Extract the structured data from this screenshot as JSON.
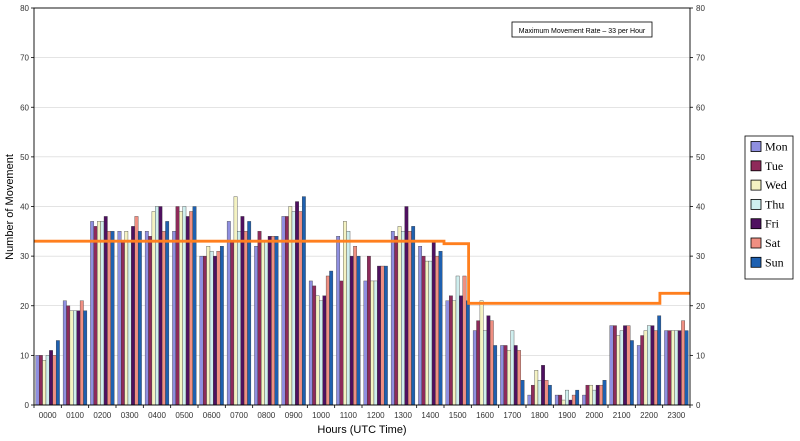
{
  "chart_data": {
    "type": "bar",
    "ylabel": "Number of Movement",
    "xlabel": "Hours (UTC Time)",
    "ylim": [
      0,
      80
    ],
    "yticks": [
      0,
      10,
      20,
      30,
      40,
      50,
      60,
      70,
      80
    ],
    "grid": true,
    "legend_position": "right",
    "categories": [
      "0000",
      "0100",
      "0200",
      "0300",
      "0400",
      "0500",
      "0600",
      "0700",
      "0800",
      "0900",
      "1000",
      "1100",
      "1200",
      "1300",
      "1400",
      "1500",
      "1600",
      "1700",
      "1800",
      "1900",
      "2000",
      "2100",
      "2200",
      "2300"
    ],
    "series": [
      {
        "name": "Mon",
        "color": "#8f8fe0",
        "values": [
          10,
          21,
          37,
          35,
          35,
          35,
          30,
          37,
          32,
          38,
          25,
          34,
          25,
          35,
          32,
          21,
          15,
          12,
          2,
          2,
          2,
          16,
          12,
          15
        ]
      },
      {
        "name": "Tue",
        "color": "#8e2a5a",
        "values": [
          10,
          20,
          36,
          33,
          34,
          40,
          30,
          33,
          35,
          38,
          24,
          25,
          30,
          34,
          30,
          22,
          17,
          12,
          4,
          2,
          4,
          16,
          14,
          15
        ]
      },
      {
        "name": "Wed",
        "color": "#f4f2c2",
        "values": [
          9,
          19,
          37,
          35,
          39,
          39,
          32,
          42,
          33,
          40,
          22,
          37,
          25,
          36,
          29,
          21,
          21,
          11,
          7,
          1,
          4,
          14,
          15,
          15
        ]
      },
      {
        "name": "Thu",
        "color": "#cfeeee",
        "values": [
          10,
          19,
          37,
          33,
          40,
          40,
          31,
          35,
          33,
          39,
          21,
          35,
          25,
          35,
          29,
          26,
          15,
          15,
          5,
          3,
          3,
          15,
          16,
          15
        ]
      },
      {
        "name": "Fri",
        "color": "#4f1060",
        "values": [
          11,
          19,
          38,
          36,
          40,
          38,
          30,
          38,
          34,
          41,
          22,
          30,
          28,
          40,
          33,
          22,
          18,
          12,
          8,
          1,
          4,
          16,
          16,
          15
        ]
      },
      {
        "name": "Sat",
        "color": "#ef8f82",
        "values": [
          10,
          21,
          35,
          38,
          35,
          39,
          31,
          35,
          34,
          39,
          26,
          32,
          28,
          35,
          30,
          26,
          17,
          11,
          5,
          2,
          4,
          16,
          15,
          17
        ]
      },
      {
        "name": "Sun",
        "color": "#1e60b0",
        "values": [
          13,
          19,
          35,
          35,
          37,
          40,
          32,
          37,
          34,
          42,
          27,
          30,
          28,
          36,
          31,
          21,
          12,
          5,
          4,
          3,
          5,
          13,
          18,
          15
        ]
      }
    ],
    "capacity_line": {
      "color": "#ff7f1e",
      "points": [
        [
          -0.5,
          33
        ],
        [
          14.5,
          33
        ],
        [
          14.5,
          32.5
        ],
        [
          15.4,
          32.5
        ],
        [
          15.4,
          20.5
        ],
        [
          22.4,
          20.5
        ],
        [
          22.4,
          22.5
        ],
        [
          23.5,
          22.5
        ]
      ]
    },
    "annotation": "Maximum Movement Rate – 33 per Hour"
  }
}
